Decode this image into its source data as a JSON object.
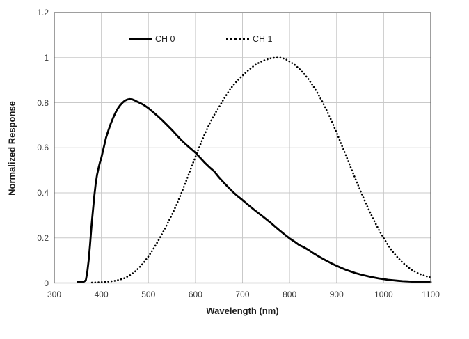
{
  "chart_data": {
    "type": "line",
    "title": "",
    "xlabel": "Wavelength (nm)",
    "ylabel": "Normalized Response",
    "xlim": [
      300,
      1100
    ],
    "ylim": [
      0,
      1.2
    ],
    "x_ticks": [
      300,
      400,
      500,
      600,
      700,
      800,
      900,
      1000,
      1100
    ],
    "x_tick_labels": [
      "300",
      "400",
      "500",
      "600",
      "700",
      "800",
      "900",
      "1000",
      "1100"
    ],
    "y_ticks": [
      0,
      0.2,
      0.4,
      0.6,
      0.8,
      1.0,
      1.2
    ],
    "y_tick_labels": [
      "0",
      "0.2",
      "0.4",
      "0.6",
      "0.8",
      "1",
      "1.2"
    ],
    "grid": true,
    "legend_position": "top-inside-horizontal",
    "series": [
      {
        "name": "CH 0",
        "style": "solid",
        "color": "#000000",
        "points": [
          [
            350,
            0.004
          ],
          [
            357,
            0.004
          ],
          [
            363,
            0.006
          ],
          [
            367,
            0.012
          ],
          [
            370,
            0.045
          ],
          [
            373,
            0.1
          ],
          [
            376,
            0.17
          ],
          [
            379,
            0.25
          ],
          [
            382,
            0.32
          ],
          [
            385,
            0.385
          ],
          [
            388,
            0.44
          ],
          [
            391,
            0.48
          ],
          [
            394,
            0.51
          ],
          [
            397,
            0.535
          ],
          [
            400,
            0.555
          ],
          [
            405,
            0.6
          ],
          [
            410,
            0.645
          ],
          [
            415,
            0.677
          ],
          [
            420,
            0.707
          ],
          [
            425,
            0.732
          ],
          [
            430,
            0.755
          ],
          [
            435,
            0.774
          ],
          [
            440,
            0.789
          ],
          [
            445,
            0.8
          ],
          [
            450,
            0.809
          ],
          [
            455,
            0.814
          ],
          [
            460,
            0.816
          ],
          [
            465,
            0.815
          ],
          [
            470,
            0.811
          ],
          [
            475,
            0.806
          ],
          [
            480,
            0.801
          ],
          [
            485,
            0.796
          ],
          [
            490,
            0.79
          ],
          [
            495,
            0.783
          ],
          [
            500,
            0.776
          ],
          [
            510,
            0.758
          ],
          [
            520,
            0.74
          ],
          [
            530,
            0.721
          ],
          [
            540,
            0.7
          ],
          [
            550,
            0.679
          ],
          [
            560,
            0.656
          ],
          [
            570,
            0.634
          ],
          [
            580,
            0.614
          ],
          [
            590,
            0.596
          ],
          [
            600,
            0.578
          ],
          [
            610,
            0.556
          ],
          [
            620,
            0.533
          ],
          [
            630,
            0.513
          ],
          [
            640,
            0.495
          ],
          [
            650,
            0.469
          ],
          [
            660,
            0.446
          ],
          [
            670,
            0.424
          ],
          [
            680,
            0.403
          ],
          [
            690,
            0.385
          ],
          [
            700,
            0.368
          ],
          [
            710,
            0.35
          ],
          [
            720,
            0.333
          ],
          [
            730,
            0.316
          ],
          [
            740,
            0.3
          ],
          [
            750,
            0.284
          ],
          [
            760,
            0.267
          ],
          [
            770,
            0.249
          ],
          [
            780,
            0.231
          ],
          [
            790,
            0.214
          ],
          [
            800,
            0.198
          ],
          [
            810,
            0.184
          ],
          [
            820,
            0.169
          ],
          [
            830,
            0.159
          ],
          [
            840,
            0.147
          ],
          [
            850,
            0.133
          ],
          [
            860,
            0.12
          ],
          [
            870,
            0.108
          ],
          [
            880,
            0.097
          ],
          [
            890,
            0.086
          ],
          [
            900,
            0.076
          ],
          [
            910,
            0.067
          ],
          [
            920,
            0.058
          ],
          [
            930,
            0.051
          ],
          [
            940,
            0.044
          ],
          [
            950,
            0.038
          ],
          [
            960,
            0.033
          ],
          [
            970,
            0.028
          ],
          [
            980,
            0.024
          ],
          [
            990,
            0.02
          ],
          [
            1000,
            0.017
          ],
          [
            1010,
            0.014
          ],
          [
            1020,
            0.012
          ],
          [
            1030,
            0.01
          ],
          [
            1040,
            0.008
          ],
          [
            1050,
            0.007
          ],
          [
            1060,
            0.006
          ],
          [
            1070,
            0.005
          ],
          [
            1080,
            0.005
          ],
          [
            1090,
            0.004
          ],
          [
            1100,
            0.004
          ]
        ]
      },
      {
        "name": "CH 1",
        "style": "dotted",
        "color": "#000000",
        "points": [
          [
            380,
            0.002
          ],
          [
            395,
            0.003
          ],
          [
            410,
            0.005
          ],
          [
            420,
            0.007
          ],
          [
            430,
            0.01
          ],
          [
            440,
            0.015
          ],
          [
            450,
            0.022
          ],
          [
            460,
            0.033
          ],
          [
            470,
            0.048
          ],
          [
            480,
            0.067
          ],
          [
            490,
            0.09
          ],
          [
            500,
            0.118
          ],
          [
            510,
            0.149
          ],
          [
            520,
            0.184
          ],
          [
            530,
            0.221
          ],
          [
            540,
            0.261
          ],
          [
            550,
            0.303
          ],
          [
            560,
            0.348
          ],
          [
            570,
            0.398
          ],
          [
            580,
            0.451
          ],
          [
            590,
            0.506
          ],
          [
            600,
            0.56
          ],
          [
            610,
            0.612
          ],
          [
            620,
            0.662
          ],
          [
            630,
            0.707
          ],
          [
            640,
            0.746
          ],
          [
            650,
            0.78
          ],
          [
            660,
            0.815
          ],
          [
            670,
            0.848
          ],
          [
            680,
            0.877
          ],
          [
            690,
            0.9
          ],
          [
            700,
            0.92
          ],
          [
            710,
            0.94
          ],
          [
            720,
            0.957
          ],
          [
            730,
            0.972
          ],
          [
            740,
            0.983
          ],
          [
            750,
            0.991
          ],
          [
            760,
            0.997
          ],
          [
            770,
            1.0
          ],
          [
            780,
            1.0
          ],
          [
            790,
            0.995
          ],
          [
            800,
            0.983
          ],
          [
            810,
            0.97
          ],
          [
            820,
            0.952
          ],
          [
            830,
            0.93
          ],
          [
            840,
            0.905
          ],
          [
            850,
            0.875
          ],
          [
            860,
            0.841
          ],
          [
            870,
            0.803
          ],
          [
            880,
            0.761
          ],
          [
            890,
            0.716
          ],
          [
            900,
            0.667
          ],
          [
            910,
            0.616
          ],
          [
            920,
            0.565
          ],
          [
            930,
            0.513
          ],
          [
            940,
            0.462
          ],
          [
            950,
            0.412
          ],
          [
            960,
            0.364
          ],
          [
            970,
            0.318
          ],
          [
            980,
            0.275
          ],
          [
            990,
            0.235
          ],
          [
            1000,
            0.199
          ],
          [
            1010,
            0.166
          ],
          [
            1020,
            0.137
          ],
          [
            1030,
            0.112
          ],
          [
            1040,
            0.091
          ],
          [
            1050,
            0.073
          ],
          [
            1060,
            0.058
          ],
          [
            1070,
            0.046
          ],
          [
            1080,
            0.037
          ],
          [
            1090,
            0.03
          ],
          [
            1100,
            0.024
          ]
        ]
      }
    ]
  },
  "colors": {
    "background": "#ffffff",
    "gridline": "#c9c9c9",
    "plot_border": "#5f5f5f",
    "curve": "#000000",
    "tick_label": "#3a3a3a",
    "axis_title": "#1c1c1c"
  }
}
